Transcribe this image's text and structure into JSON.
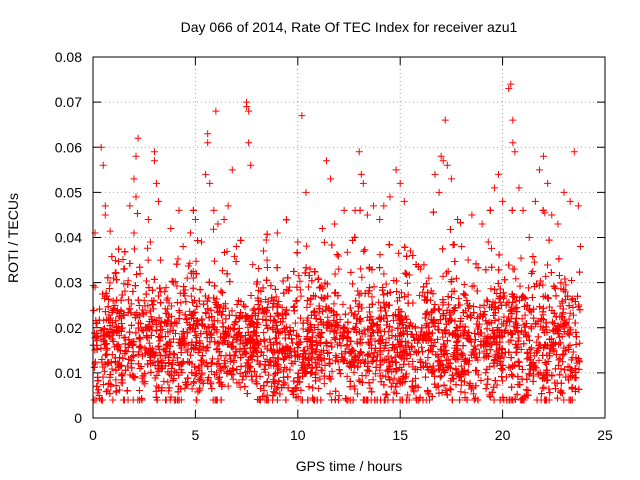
{
  "chart_data": {
    "type": "scatter",
    "title": "Day 066 of 2014, Rate Of TEC Index for receiver azu1",
    "xlabel": "GPS time / hours",
    "ylabel": "ROTI / TECUs",
    "xlim": [
      0,
      25
    ],
    "ylim": [
      0,
      0.08
    ],
    "x_ticks": [
      0,
      5,
      10,
      15,
      20,
      25
    ],
    "x_tick_labels": [
      "0",
      "5",
      "10",
      "15",
      "20",
      "25"
    ],
    "y_ticks": [
      0,
      0.01,
      0.02,
      0.03,
      0.04,
      0.05,
      0.06,
      0.07,
      0.08
    ],
    "y_tick_labels": [
      "0",
      "0.01",
      "0.02",
      "0.03",
      "0.04",
      "0.05",
      "0.06",
      "0.07",
      "0.08"
    ],
    "grid": true,
    "marker": "plus",
    "color": "#ff0000",
    "series": [
      {
        "name": "ROTI",
        "points": [
          [
            0.1,
            0.029
          ],
          [
            0.1,
            0.041
          ],
          [
            0.2,
            0.018
          ],
          [
            0.3,
            0.005
          ],
          [
            0.4,
            0.06
          ],
          [
            0.5,
            0.056
          ],
          [
            0.6,
            0.047
          ],
          [
            0.6,
            0.045
          ],
          [
            0.7,
            0.012
          ],
          [
            1.0,
            0.031
          ],
          [
            1.2,
            0.024
          ],
          [
            1.5,
            0.033
          ],
          [
            1.8,
            0.047
          ],
          [
            2.0,
            0.053
          ],
          [
            2.0,
            0.041
          ],
          [
            2.1,
            0.049
          ],
          [
            2.2,
            0.062
          ],
          [
            2.1,
            0.058
          ],
          [
            2.3,
            0.032
          ],
          [
            2.5,
            0.026
          ],
          [
            2.7,
            0.044
          ],
          [
            2.8,
            0.039
          ],
          [
            3.0,
            0.057
          ],
          [
            3.0,
            0.059
          ],
          [
            3.1,
            0.052
          ],
          [
            3.2,
            0.048
          ],
          [
            3.3,
            0.035
          ],
          [
            3.5,
            0.028
          ],
          [
            3.8,
            0.042
          ],
          [
            4.0,
            0.021
          ],
          [
            4.2,
            0.046
          ],
          [
            4.4,
            0.038
          ],
          [
            4.6,
            0.031
          ],
          [
            4.8,
            0.027
          ],
          [
            5.0,
            0.044
          ],
          [
            5.3,
            0.039
          ],
          [
            5.5,
            0.054
          ],
          [
            5.6,
            0.063
          ],
          [
            5.6,
            0.061
          ],
          [
            5.7,
            0.052
          ],
          [
            5.9,
            0.046
          ],
          [
            6.0,
            0.068
          ],
          [
            6.1,
            0.043
          ],
          [
            6.4,
            0.044
          ],
          [
            6.6,
            0.047
          ],
          [
            6.8,
            0.055
          ],
          [
            7.0,
            0.038
          ],
          [
            7.1,
            0.026
          ],
          [
            7.5,
            0.07
          ],
          [
            7.5,
            0.069
          ],
          [
            7.6,
            0.068
          ],
          [
            7.6,
            0.061
          ],
          [
            7.7,
            0.056
          ],
          [
            7.8,
            0.034
          ],
          [
            8.2,
            0.028
          ],
          [
            8.5,
            0.035
          ],
          [
            9.0,
            0.041
          ],
          [
            9.3,
            0.015
          ],
          [
            9.6,
            0.029
          ],
          [
            10.0,
            0.039
          ],
          [
            10.2,
            0.067
          ],
          [
            10.4,
            0.05
          ],
          [
            10.6,
            0.033
          ],
          [
            11.0,
            0.031
          ],
          [
            11.2,
            0.042
          ],
          [
            11.4,
            0.057
          ],
          [
            11.6,
            0.053
          ],
          [
            11.8,
            0.043
          ],
          [
            12.0,
            0.033
          ],
          [
            12.4,
            0.018
          ],
          [
            12.8,
            0.046
          ],
          [
            13.0,
            0.059
          ],
          [
            13.1,
            0.054
          ],
          [
            13.2,
            0.052
          ],
          [
            13.4,
            0.045
          ],
          [
            13.7,
            0.047
          ],
          [
            14.0,
            0.044
          ],
          [
            14.2,
            0.047
          ],
          [
            14.5,
            0.049
          ],
          [
            14.8,
            0.055
          ],
          [
            15.0,
            0.052
          ],
          [
            15.2,
            0.048
          ],
          [
            15.5,
            0.037
          ],
          [
            16.0,
            0.033
          ],
          [
            16.4,
            0.031
          ],
          [
            16.7,
            0.054
          ],
          [
            16.9,
            0.05
          ],
          [
            17.0,
            0.058
          ],
          [
            17.1,
            0.057
          ],
          [
            17.2,
            0.066
          ],
          [
            17.3,
            0.056
          ],
          [
            17.5,
            0.053
          ],
          [
            17.8,
            0.044
          ],
          [
            18.0,
            0.038
          ],
          [
            18.5,
            0.045
          ],
          [
            19.0,
            0.043
          ],
          [
            19.3,
            0.039
          ],
          [
            19.6,
            0.051
          ],
          [
            19.8,
            0.054
          ],
          [
            20.0,
            0.048
          ],
          [
            20.3,
            0.073
          ],
          [
            20.4,
            0.074
          ],
          [
            20.5,
            0.066
          ],
          [
            20.5,
            0.061
          ],
          [
            20.6,
            0.059
          ],
          [
            20.8,
            0.051
          ],
          [
            21.0,
            0.046
          ],
          [
            21.3,
            0.04
          ],
          [
            21.6,
            0.048
          ],
          [
            21.8,
            0.055
          ],
          [
            22.0,
            0.058
          ],
          [
            22.2,
            0.052
          ],
          [
            22.4,
            0.045
          ],
          [
            22.7,
            0.043
          ],
          [
            23.0,
            0.05
          ],
          [
            23.3,
            0.048
          ],
          [
            23.5,
            0.059
          ],
          [
            23.7,
            0.047
          ],
          [
            23.8,
            0.038
          ]
        ]
      }
    ]
  }
}
